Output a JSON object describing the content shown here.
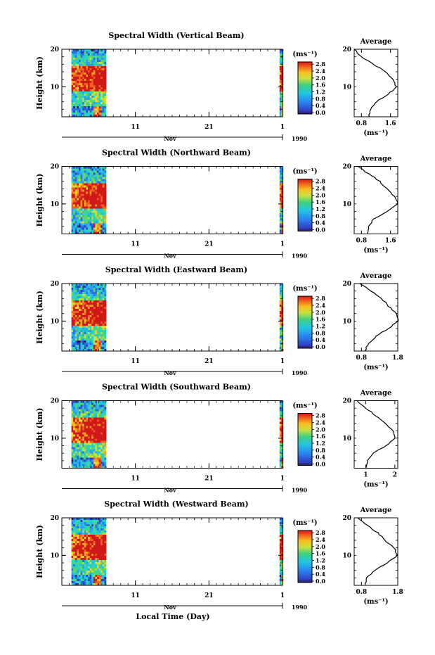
{
  "figure": {
    "xlabel": "Local Time (Day)",
    "x_ticklabels": [
      "11",
      "21",
      "1"
    ],
    "x_month_label": "Nov",
    "x_year_label": "1990",
    "y_ticklabels": [
      "20",
      "10"
    ],
    "ylabel": "Height (km)",
    "colorbar_unit": "(ms⁻¹)",
    "colorbar_ticklabels": [
      "2.8",
      "2.4",
      "2.0",
      "1.6",
      "1.2",
      "0.8",
      "0.4",
      "0.0"
    ],
    "avg_title": "Average",
    "avg_unit": "(ms⁻¹)"
  },
  "chart_data": [
    {
      "type": "heatmap",
      "title": "Spectral Width (Vertical Beam)",
      "xlabel": "",
      "ylabel": "Height (km)",
      "ylim": [
        2,
        20
      ],
      "x_ticks": [
        "11",
        "21",
        "1"
      ],
      "y_ticks": [
        10,
        20
      ],
      "colorbar": {
        "label": "(ms⁻¹)",
        "range": [
          0.0,
          2.8
        ],
        "ticks": [
          "2.8",
          "2.4",
          "2.0",
          "1.6",
          "1.2",
          "0.8",
          "0.4",
          "0.0"
        ]
      },
      "average_profile": {
        "title": "Average",
        "xlabel": "(ms⁻¹)",
        "xlim": [
          0.6,
          1.8
        ],
        "x_ticks": [
          "0.8",
          "1.6"
        ],
        "heights": [
          2,
          4,
          6,
          8,
          10,
          12,
          14,
          16,
          18,
          20
        ],
        "values": [
          1.0,
          1.05,
          1.2,
          1.55,
          1.75,
          1.65,
          1.45,
          1.15,
          0.8,
          0.6
        ]
      }
    },
    {
      "type": "heatmap",
      "title": "Spectral Width (Northward Beam)",
      "xlabel": "",
      "ylabel": "Height (km)",
      "ylim": [
        2,
        20
      ],
      "x_ticks": [
        "11",
        "21",
        "1"
      ],
      "y_ticks": [
        10,
        20
      ],
      "colorbar": {
        "label": "(ms⁻¹)",
        "range": [
          0.0,
          2.8
        ],
        "ticks": [
          "2.8",
          "2.4",
          "2.0",
          "1.6",
          "1.2",
          "0.8",
          "0.4",
          "0.0"
        ]
      },
      "average_profile": {
        "title": "Average",
        "xlabel": "(ms⁻¹)",
        "xlim": [
          0.6,
          1.8
        ],
        "x_ticks": [
          "0.8",
          "1.6"
        ],
        "heights": [
          2,
          4,
          6,
          8,
          10,
          12,
          14,
          16,
          18,
          20
        ],
        "values": [
          0.95,
          1.0,
          1.15,
          1.5,
          1.8,
          1.7,
          1.5,
          1.3,
          1.0,
          0.7
        ]
      }
    },
    {
      "type": "heatmap",
      "title": "Spectral Width (Eastward Beam)",
      "xlabel": "",
      "ylabel": "Height (km)",
      "ylim": [
        2,
        20
      ],
      "x_ticks": [
        "11",
        "21",
        "1"
      ],
      "y_ticks": [
        10,
        20
      ],
      "colorbar": {
        "label": "(ms⁻¹)",
        "range": [
          0.0,
          2.8
        ],
        "ticks": [
          "2.8",
          "2.4",
          "2.0",
          "1.6",
          "1.2",
          "0.8",
          "0.4",
          "0.0"
        ]
      },
      "average_profile": {
        "title": "Average",
        "xlabel": "(ms⁻¹)",
        "xlim": [
          0.6,
          1.8
        ],
        "x_ticks": [
          "0.8",
          "1.8"
        ],
        "heights": [
          2,
          4,
          6,
          8,
          10,
          12,
          14,
          16,
          18,
          20
        ],
        "values": [
          0.9,
          1.0,
          1.2,
          1.55,
          1.8,
          1.75,
          1.55,
          1.35,
          1.05,
          0.75
        ]
      }
    },
    {
      "type": "heatmap",
      "title": "Spectral Width (Southward Beam)",
      "xlabel": "",
      "ylabel": "Height (km)",
      "ylim": [
        2,
        20
      ],
      "x_ticks": [
        "11",
        "21",
        "1"
      ],
      "y_ticks": [
        10,
        20
      ],
      "colorbar": {
        "label": "(ms⁻¹)",
        "range": [
          0.0,
          2.8
        ],
        "ticks": [
          "2.8",
          "2.4",
          "2.0",
          "1.6",
          "1.2",
          "0.8",
          "0.4",
          "0.0"
        ]
      },
      "average_profile": {
        "title": "Average",
        "xlabel": "(ms⁻¹)",
        "xlim": [
          0.6,
          2.1
        ],
        "x_ticks": [
          "1",
          "2"
        ],
        "heights": [
          2,
          4,
          6,
          8,
          10,
          12,
          14,
          16,
          18,
          20
        ],
        "values": [
          1.0,
          1.05,
          1.25,
          1.7,
          2.0,
          1.95,
          1.65,
          1.35,
          1.0,
          0.7
        ]
      }
    },
    {
      "type": "heatmap",
      "title": "Spectral Width (Westward Beam)",
      "xlabel": "Local Time (Day)",
      "ylabel": "Height (km)",
      "ylim": [
        2,
        20
      ],
      "x_ticks": [
        "11",
        "21",
        "1"
      ],
      "y_ticks": [
        10,
        20
      ],
      "colorbar": {
        "label": "(ms⁻¹)",
        "range": [
          0.0,
          2.8
        ],
        "ticks": [
          "2.8",
          "2.4",
          "2.0",
          "1.6",
          "1.2",
          "0.8",
          "0.4",
          "0.0"
        ]
      },
      "average_profile": {
        "title": "Average",
        "xlabel": "(ms⁻¹)",
        "xlim": [
          0.6,
          1.8
        ],
        "x_ticks": [
          "0.8",
          "1.8"
        ],
        "heights": [
          2,
          4,
          6,
          8,
          10,
          12,
          14,
          16,
          18,
          20
        ],
        "values": [
          0.9,
          0.95,
          1.15,
          1.5,
          1.8,
          1.7,
          1.45,
          1.25,
          0.95,
          0.7
        ]
      }
    }
  ]
}
